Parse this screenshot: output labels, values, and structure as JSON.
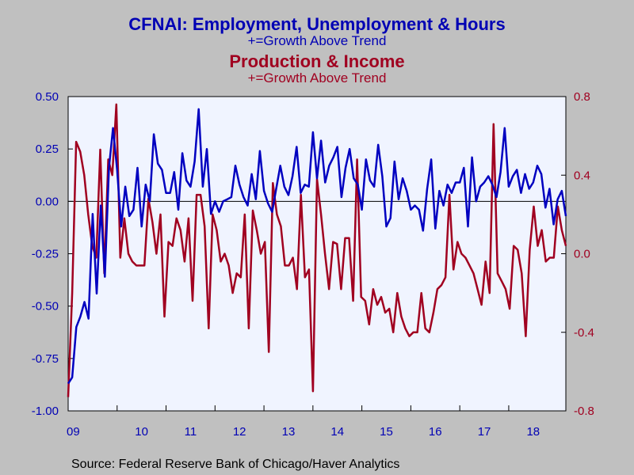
{
  "title_primary": "CFNAI: Employment, Unemployment & Hours",
  "subtitle_primary": "+=Growth Above Trend",
  "title_secondary": "Production & Income",
  "subtitle_secondary": "+=Growth Above Trend",
  "source": "Source:  Federal Reserve Bank of Chicago/Haver Analytics",
  "colors": {
    "employment": "#0000c0",
    "production": "#a00020",
    "plot_bg": "#f0f4ff",
    "page_bg": "#c0c0c0"
  },
  "chart_data": {
    "type": "line",
    "grid": false,
    "x_ticks": [
      "09",
      "10",
      "11",
      "12",
      "13",
      "14",
      "15",
      "16",
      "17",
      "18"
    ],
    "x_start": "2009-01",
    "x_end": "2019-03",
    "left_axis": {
      "ylim": [
        -1.0,
        0.5
      ],
      "ticks": [
        "0.50",
        "0.25",
        "0.00",
        "-0.25",
        "-0.50",
        "-0.75",
        "-1.00"
      ]
    },
    "right_axis": {
      "ylim": [
        -0.8,
        0.8
      ],
      "ticks": [
        "0.8",
        "0.4",
        "0.0",
        "-0.4",
        "-0.8"
      ]
    },
    "reference_line": 0.0,
    "series": [
      {
        "name": "Employment, Unemployment & Hours",
        "axis": "left",
        "values": [
          -0.87,
          -0.84,
          -0.6,
          -0.55,
          -0.48,
          -0.56,
          -0.06,
          -0.44,
          -0.02,
          -0.36,
          0.16,
          0.35,
          0.15,
          -0.12,
          0.07,
          -0.07,
          -0.04,
          0.16,
          -0.12,
          0.08,
          0.0,
          0.32,
          0.18,
          0.15,
          0.04,
          0.04,
          0.14,
          -0.04,
          0.23,
          0.1,
          0.07,
          0.19,
          0.44,
          0.07,
          0.25,
          -0.06,
          0.0,
          -0.05,
          0.0,
          0.01,
          0.02,
          0.17,
          0.08,
          0.02,
          -0.02,
          0.13,
          0.01,
          0.24,
          0.05,
          -0.01,
          -0.05,
          0.06,
          0.17,
          0.07,
          0.03,
          0.12,
          0.26,
          0.04,
          0.08,
          0.07,
          0.33,
          0.11,
          0.29,
          0.09,
          0.17,
          0.21,
          0.26,
          0.02,
          0.16,
          0.25,
          0.11,
          0.08,
          -0.04,
          0.2,
          0.1,
          0.07,
          0.27,
          0.12,
          -0.12,
          -0.08,
          0.19,
          0.01,
          0.11,
          0.05,
          -0.04,
          -0.02,
          -0.04,
          -0.14,
          0.06,
          0.2,
          -0.13,
          0.05,
          -0.02,
          0.08,
          0.04,
          0.09,
          0.09,
          0.16,
          -0.12,
          0.21,
          0.0,
          0.07,
          0.09,
          0.12,
          0.08,
          0.02,
          0.14,
          0.35,
          0.07,
          0.12,
          0.15,
          0.04,
          0.13,
          0.06,
          0.09,
          0.17,
          0.13,
          -0.03,
          0.06,
          -0.11,
          0.01,
          0.05,
          -0.07
        ]
      },
      {
        "name": "Production & Income",
        "axis": "right",
        "values": [
          -0.73,
          -0.2,
          0.57,
          0.52,
          0.4,
          0.2,
          0.04,
          -0.02,
          0.53,
          -0.1,
          0.48,
          0.4,
          0.76,
          -0.02,
          0.18,
          0.0,
          -0.04,
          -0.06,
          -0.06,
          -0.06,
          0.28,
          0.16,
          0.0,
          0.2,
          -0.32,
          0.06,
          0.04,
          0.18,
          0.12,
          -0.04,
          0.18,
          -0.24,
          0.3,
          0.3,
          0.14,
          -0.38,
          0.2,
          0.12,
          -0.04,
          0.0,
          -0.06,
          -0.2,
          -0.1,
          -0.12,
          0.2,
          -0.38,
          0.22,
          0.12,
          0.0,
          0.06,
          -0.5,
          0.36,
          0.2,
          0.14,
          -0.06,
          -0.06,
          -0.02,
          -0.18,
          0.3,
          -0.12,
          -0.08,
          -0.7,
          0.38,
          0.2,
          0.0,
          -0.18,
          0.06,
          0.05,
          -0.18,
          0.08,
          0.08,
          -0.24,
          0.48,
          -0.22,
          -0.24,
          -0.36,
          -0.18,
          -0.26,
          -0.22,
          -0.3,
          -0.28,
          -0.4,
          -0.2,
          -0.32,
          -0.38,
          -0.42,
          -0.4,
          -0.4,
          -0.2,
          -0.38,
          -0.4,
          -0.3,
          -0.18,
          -0.16,
          -0.12,
          0.3,
          -0.08,
          0.06,
          0.0,
          -0.02,
          -0.06,
          -0.1,
          -0.18,
          -0.26,
          -0.04,
          -0.2,
          0.66,
          -0.1,
          -0.14,
          -0.18,
          -0.28,
          0.04,
          0.02,
          -0.1,
          -0.42,
          0.02,
          0.24,
          0.04,
          0.12,
          -0.04,
          -0.02,
          -0.02,
          0.24,
          0.12,
          0.04
        ]
      }
    ]
  }
}
